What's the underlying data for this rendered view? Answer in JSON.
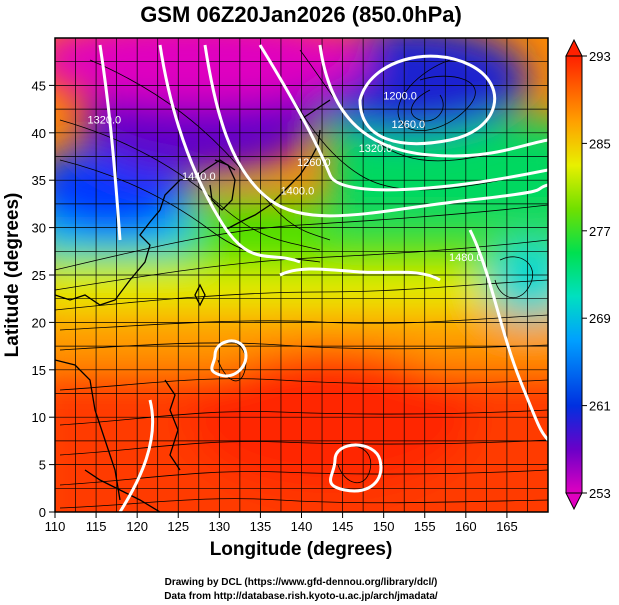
{
  "chart_data": {
    "type": "heatmap",
    "title": "GSM 06Z20Jan2026 (850.0hPa)",
    "xlabel": "Longitude (degrees)",
    "ylabel": "Latitude  (degrees)",
    "xlim": [
      110,
      170
    ],
    "ylim": [
      0,
      50
    ],
    "x_ticks": [
      110,
      115,
      120,
      125,
      130,
      135,
      140,
      145,
      150,
      155,
      160,
      165
    ],
    "y_ticks": [
      0,
      5,
      10,
      15,
      20,
      25,
      30,
      35,
      40,
      45
    ],
    "colorbar": {
      "ticks": [
        253,
        261,
        269,
        277,
        285,
        293
      ],
      "min": 253,
      "max": 293,
      "colors": [
        "#e000c0",
        "#3a00c8",
        "#0048ff",
        "#00d2ff",
        "#00e070",
        "#78e000",
        "#e8f000",
        "#ffa000",
        "#ff2000"
      ]
    },
    "contour_labels": [
      {
        "text": "1200.0",
        "lon": 152.0,
        "lat": 43.5
      },
      {
        "text": "1260.0",
        "lon": 153.0,
        "lat": 40.5
      },
      {
        "text": "1320.0",
        "lon": 149.0,
        "lat": 38.0
      },
      {
        "text": "1260.0",
        "lon": 141.5,
        "lat": 36.5
      },
      {
        "text": "1400.0",
        "lon": 139.5,
        "lat": 33.5
      },
      {
        "text": "1440.0",
        "lon": 127.5,
        "lat": 35.0
      },
      {
        "text": "1320.0",
        "lon": 116.0,
        "lat": 41.0
      },
      {
        "text": "1480.0",
        "lon": 160.0,
        "lat": 26.5
      }
    ],
    "credits": [
      "Drawing by DCL (https://www.gfd-dennou.org/library/dcl/)",
      "Data from http://database.rish.kyoto-u.ac.jp/arch/jmadata/"
    ]
  }
}
